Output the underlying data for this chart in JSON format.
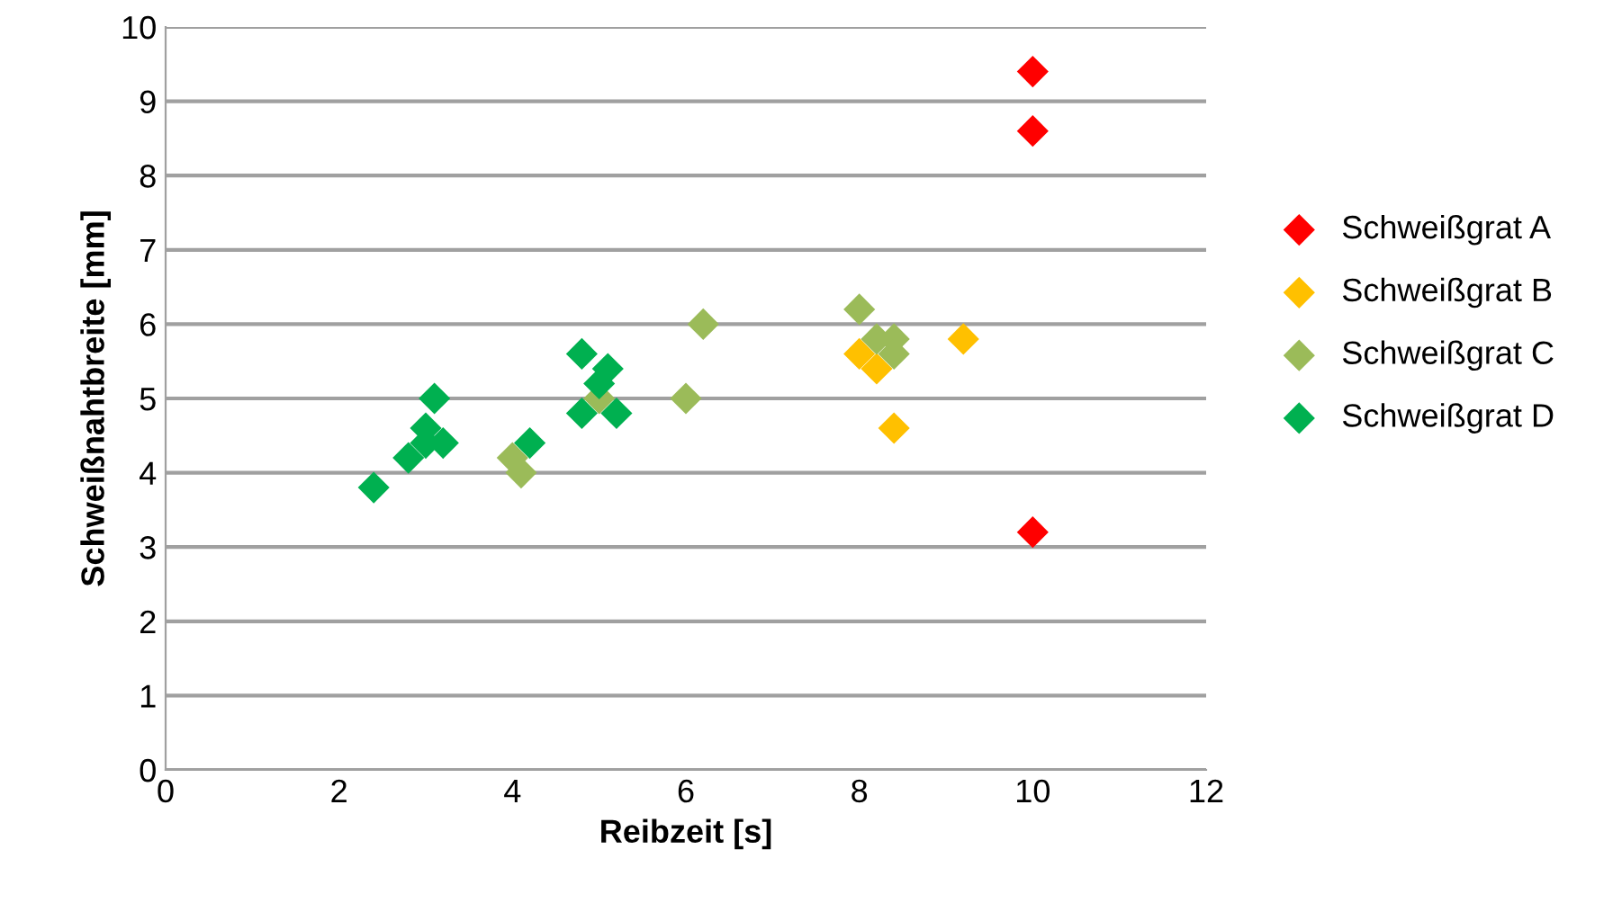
{
  "chart_data": {
    "type": "scatter",
    "xlabel": "Reibzeit [s]",
    "ylabel": "Schweißnahtbreite [mm]",
    "xlim": [
      0,
      12
    ],
    "xticks": [
      0,
      2,
      4,
      6,
      8,
      10,
      12
    ],
    "ylim": [
      0,
      10
    ],
    "yticks": [
      0,
      1,
      2,
      3,
      4,
      5,
      6,
      7,
      8,
      9,
      10
    ],
    "grid": "y",
    "legend": "right",
    "marker": "diamond",
    "series": [
      {
        "name": "Schweißgrat A",
        "color": "#ff0000",
        "x": [
          10,
          10,
          10
        ],
        "values": [
          9.4,
          8.6,
          3.2
        ]
      },
      {
        "name": "Schweißgrat B",
        "color": "#ffc000",
        "x": [
          8,
          8.2,
          8.4,
          9.2
        ],
        "values": [
          5.6,
          5.4,
          4.6,
          5.8
        ]
      },
      {
        "name": "Schweißgrat C",
        "color": "#9bbb59",
        "x": [
          4,
          4.1,
          5,
          6,
          6.2,
          8,
          8.2,
          8.4,
          8.4
        ],
        "values": [
          4.2,
          4.0,
          5.0,
          5.0,
          6.0,
          6.2,
          5.8,
          5.8,
          5.6
        ]
      },
      {
        "name": "Schweißgrat D",
        "color": "#00b050",
        "x": [
          2.4,
          2.8,
          3,
          3,
          3.1,
          3.2,
          4.2,
          4.8,
          4.8,
          5,
          5.1,
          5.2
        ],
        "values": [
          3.8,
          4.2,
          4.6,
          4.4,
          5.0,
          4.4,
          4.4,
          5.6,
          4.8,
          5.2,
          5.4,
          4.8
        ]
      }
    ]
  }
}
